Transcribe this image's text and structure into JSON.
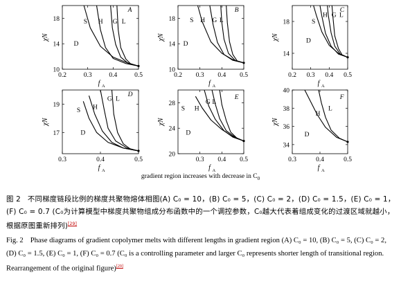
{
  "figure_note": "gradient region increases with decrease in C",
  "figure_note_sub": "0",
  "caption": {
    "cn_label": "图 2",
    "cn_text": "不同梯度链段比例的梯度共聚物熔体相图(A) C₀ = 10，(B) C₀ = 5，(C) C₀ = 2，(D)  C₀ = 1.5，(E) C₀ = 1，(F) C₀ = 0.7 (C₀为计算模型中梯度共聚物组成分布函数中的一个调控参数，C₀越大代表着组成变化的过渡区域就越小，根据原图重新排列)",
    "cn_ref": "[29]",
    "en_label": "Fig. 2",
    "en_text": "Phase diagrams of gradient copolymer melts with different lengths in gradient region (A) C₀ = 10, (B) C₀ = 5, (C) C₀ = 2, (D) C₀ = 1.5, (E) C₀ = 1, (F) C₀ = 0.7 (C₀ is a controlling parameter and larger C₀ represents shorter length of transitional region. Rearrangement of the original figure)",
    "en_ref": "[29]"
  },
  "chart_data": [
    {
      "type": "line",
      "panel": "A",
      "xlabel": "f",
      "xlabel_sub": "A",
      "ylabel": "χN",
      "xlim": [
        0.2,
        0.5
      ],
      "ylim": [
        10,
        20
      ],
      "xticks": [
        "0.2",
        "0.3",
        "0.4",
        "0.5"
      ],
      "yticks": [
        "10",
        "14",
        "18"
      ],
      "region_labels": [
        "S",
        "H",
        "G",
        "L",
        "D"
      ],
      "series": [
        {
          "x": [
            0.5,
            0.45,
            0.4,
            0.35,
            0.31,
            0.285
          ],
          "y": [
            10.5,
            11.1,
            11.9,
            13.6,
            16.5,
            20
          ]
        },
        {
          "x": [
            0.5,
            0.45,
            0.4,
            0.37,
            0.35,
            0.335
          ],
          "y": [
            10.5,
            10.9,
            11.7,
            13.4,
            16.2,
            20
          ]
        },
        {
          "x": [
            0.5,
            0.46,
            0.43,
            0.41,
            0.397,
            0.39
          ],
          "y": [
            10.5,
            10.9,
            11.9,
            13.9,
            16.5,
            20
          ]
        },
        {
          "x": [
            0.5,
            0.47,
            0.45,
            0.43,
            0.42,
            0.415
          ],
          "y": [
            10.5,
            10.8,
            11.6,
            13.4,
            16.2,
            20
          ]
        }
      ]
    },
    {
      "type": "line",
      "panel": "B",
      "xlabel": "f",
      "xlabel_sub": "A",
      "ylabel": "χN",
      "xlim": [
        0.2,
        0.5
      ],
      "ylim": [
        10,
        20
      ],
      "xticks": [
        "0.2",
        "0.3",
        "0.4",
        "0.5"
      ],
      "yticks": [
        "10",
        "14",
        "18"
      ],
      "region_labels": [
        "S",
        "H",
        "G",
        "L",
        "D"
      ],
      "series": [
        {
          "x": [
            0.5,
            0.45,
            0.4,
            0.35,
            0.31,
            0.29
          ],
          "y": [
            11,
            11.5,
            12.5,
            14.3,
            17.5,
            20
          ]
        },
        {
          "x": [
            0.5,
            0.45,
            0.41,
            0.38,
            0.36,
            0.345
          ],
          "y": [
            11,
            11.4,
            12.3,
            14.2,
            17,
            20
          ]
        },
        {
          "x": [
            0.5,
            0.46,
            0.43,
            0.41,
            0.4,
            0.395
          ],
          "y": [
            11,
            11.4,
            12.5,
            14.7,
            17.3,
            20
          ]
        },
        {
          "x": [
            0.5,
            0.47,
            0.45,
            0.435,
            0.425,
            0.42
          ],
          "y": [
            11,
            11.3,
            12.3,
            14.3,
            17.3,
            20
          ]
        }
      ]
    },
    {
      "type": "line",
      "panel": "C",
      "xlabel": "f",
      "xlabel_sub": "A",
      "ylabel": "χN",
      "xlim": [
        0.2,
        0.5
      ],
      "ylim": [
        12,
        20
      ],
      "xticks": [
        "0.2",
        "0.3",
        "0.4",
        "0.5"
      ],
      "yticks": [
        "14",
        "18"
      ],
      "region_labels": [
        "S",
        "H",
        "G",
        "L",
        "D"
      ],
      "series": [
        {
          "x": [
            0.5,
            0.45,
            0.4,
            0.36,
            0.33,
            0.315
          ],
          "y": [
            13.5,
            14,
            15,
            16.7,
            18.8,
            20
          ]
        },
        {
          "x": [
            0.5,
            0.45,
            0.41,
            0.38,
            0.36,
            0.35
          ],
          "y": [
            13.5,
            13.9,
            14.9,
            16.5,
            18.7,
            20
          ]
        },
        {
          "x": [
            0.5,
            0.46,
            0.43,
            0.41,
            0.395,
            0.39
          ],
          "y": [
            13.5,
            13.9,
            14.9,
            16.6,
            18.8,
            20
          ]
        },
        {
          "x": [
            0.5,
            0.47,
            0.45,
            0.43,
            0.42,
            0.415
          ],
          "y": [
            13.5,
            13.8,
            14.6,
            16.2,
            18.6,
            20
          ]
        }
      ]
    },
    {
      "type": "line",
      "panel": "D",
      "xlabel": "f",
      "xlabel_sub": "A",
      "ylabel": "χN",
      "xlim": [
        0.3,
        0.5
      ],
      "ylim": [
        15.5,
        20
      ],
      "xticks": [
        "0.3",
        "0.4",
        "0.5"
      ],
      "yticks": [
        "17",
        "19"
      ],
      "region_labels": [
        "S",
        "H",
        "G",
        "L",
        "D"
      ],
      "series": [
        {
          "x": [
            0.5,
            0.46,
            0.42,
            0.39,
            0.37,
            0.355
          ],
          "y": [
            15.7,
            15.9,
            16.3,
            17,
            18,
            19.2
          ]
        },
        {
          "x": [
            0.5,
            0.46,
            0.43,
            0.405,
            0.385,
            0.37
          ],
          "y": [
            15.7,
            15.9,
            16.3,
            17.1,
            18.3,
            19.6
          ]
        },
        {
          "x": [
            0.5,
            0.47,
            0.44,
            0.42,
            0.41,
            0.4
          ],
          "y": [
            15.7,
            15.9,
            16.4,
            17.3,
            18.6,
            20
          ]
        },
        {
          "x": [
            0.5,
            0.48,
            0.46,
            0.445,
            0.435,
            0.43
          ],
          "y": [
            15.7,
            15.8,
            16.2,
            17.0,
            18.3,
            20
          ]
        }
      ]
    },
    {
      "type": "line",
      "panel": "E",
      "xlabel": "f",
      "xlabel_sub": "A",
      "ylabel": "χN",
      "xlim": [
        0.2,
        0.5
      ],
      "ylim": [
        20,
        30
      ],
      "xticks": [
        "0.3",
        "0.4",
        "0.5"
      ],
      "yticks": [
        "20",
        "24",
        "28"
      ],
      "region_labels": [
        "S",
        "H",
        "G",
        "L",
        "D"
      ],
      "series": [
        {
          "x": [
            0.5,
            0.45,
            0.4,
            0.35,
            0.31,
            0.28
          ],
          "y": [
            22,
            22.7,
            23.8,
            25.3,
            27.2,
            29
          ]
        },
        {
          "x": [
            0.5,
            0.45,
            0.41,
            0.37,
            0.34,
            0.32
          ],
          "y": [
            22,
            22.6,
            23.6,
            25.4,
            27.5,
            30
          ]
        },
        {
          "x": [
            0.5,
            0.46,
            0.42,
            0.39,
            0.37,
            0.355
          ],
          "y": [
            22,
            22.6,
            23.6,
            25.5,
            27.8,
            30
          ]
        },
        {
          "x": [
            0.5,
            0.47,
            0.44,
            0.42,
            0.4,
            0.39
          ],
          "y": [
            22,
            22.4,
            23.4,
            25.2,
            27.7,
            30
          ]
        }
      ]
    },
    {
      "type": "line",
      "panel": "F",
      "xlabel": "f",
      "xlabel_sub": "A",
      "ylabel": "χN",
      "xlim": [
        0.3,
        0.5
      ],
      "ylim": [
        33,
        40
      ],
      "xticks": [
        "0.3",
        "0.4",
        "0.5"
      ],
      "yticks": [
        "34",
        "36",
        "38",
        "40"
      ],
      "region_labels": [
        "H",
        "L",
        "D"
      ],
      "series": [
        {
          "x": [
            0.5,
            0.46,
            0.42,
            0.39,
            0.365,
            0.345
          ],
          "y": [
            34.3,
            34.8,
            35.9,
            37.3,
            38.8,
            40
          ]
        },
        {
          "x": [
            0.5,
            0.47,
            0.44,
            0.42,
            0.405,
            0.395
          ],
          "y": [
            34.3,
            34.7,
            35.6,
            37,
            38.6,
            40
          ]
        }
      ]
    }
  ]
}
